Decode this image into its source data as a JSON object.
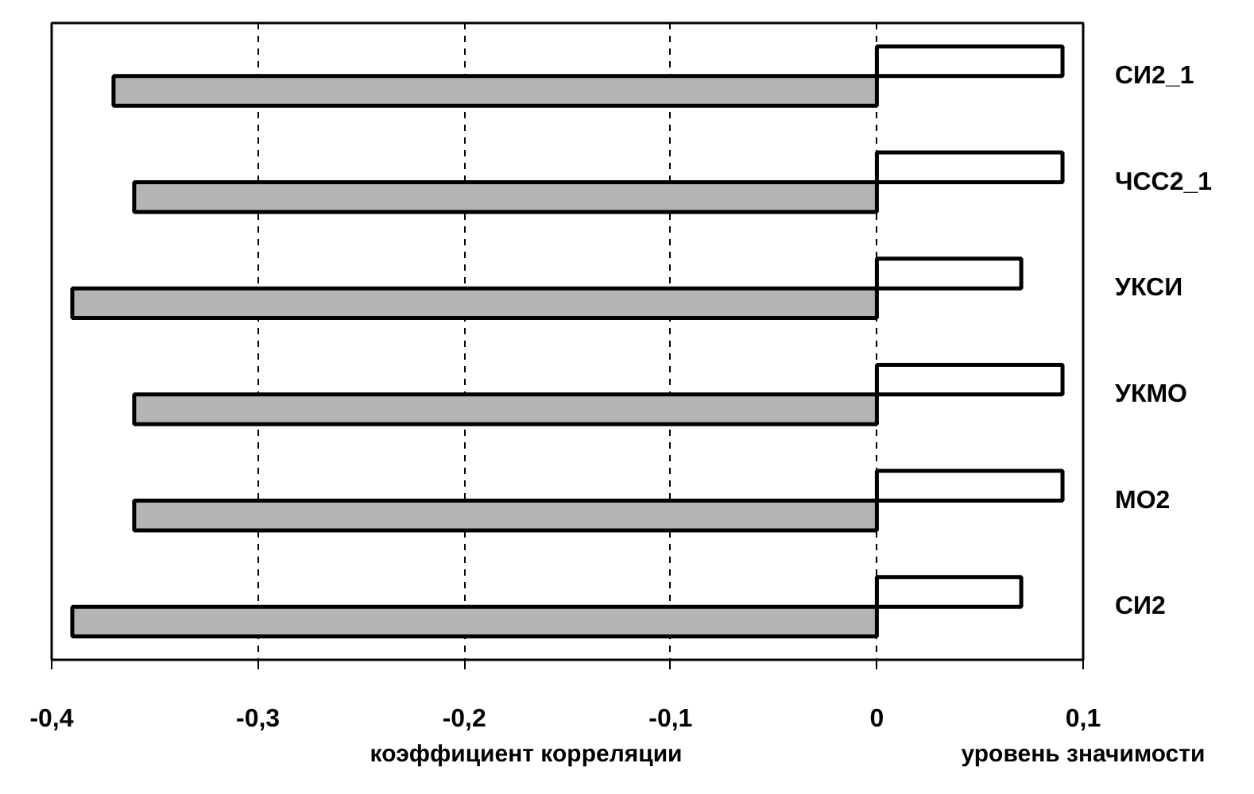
{
  "chart_data": {
    "type": "bar",
    "orientation": "horizontal",
    "xlabel": "коэффициент корреляции",
    "annotations": [
      "уровень значимости"
    ],
    "categories": [
      "СИ2_1",
      "ЧСС2_1",
      "УКСИ",
      "УКМО",
      "МО2",
      "СИ2"
    ],
    "series": [
      {
        "color": "#ffffff",
        "values": [
          0.09,
          0.09,
          0.07,
          0.09,
          0.09,
          0.07
        ]
      },
      {
        "color": "#b4b4b4",
        "values": [
          -0.37,
          -0.36,
          -0.39,
          -0.36,
          -0.36,
          -0.39
        ]
      }
    ],
    "xlim": [
      -0.4,
      0.1
    ],
    "xticks": [
      {
        "value": -0.4,
        "label": "-0,4"
      },
      {
        "value": -0.3,
        "label": "-0,3"
      },
      {
        "value": -0.2,
        "label": "-0,2"
      },
      {
        "value": -0.1,
        "label": "-0,1"
      },
      0,
      {
        "value": 0.1,
        "label": "0,1"
      }
    ],
    "grid": "x"
  }
}
